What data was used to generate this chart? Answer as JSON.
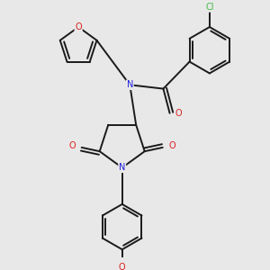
{
  "bg_color": "#e8e8e8",
  "bond_color": "#1a1a1a",
  "N_color": "#2020dd",
  "O_color": "#dd2020",
  "Cl_color": "#44bb44",
  "bond_width": 1.4,
  "figsize": [
    3.0,
    3.0
  ],
  "dpi": 100,
  "xlim": [
    0,
    10
  ],
  "ylim": [
    0,
    10
  ]
}
